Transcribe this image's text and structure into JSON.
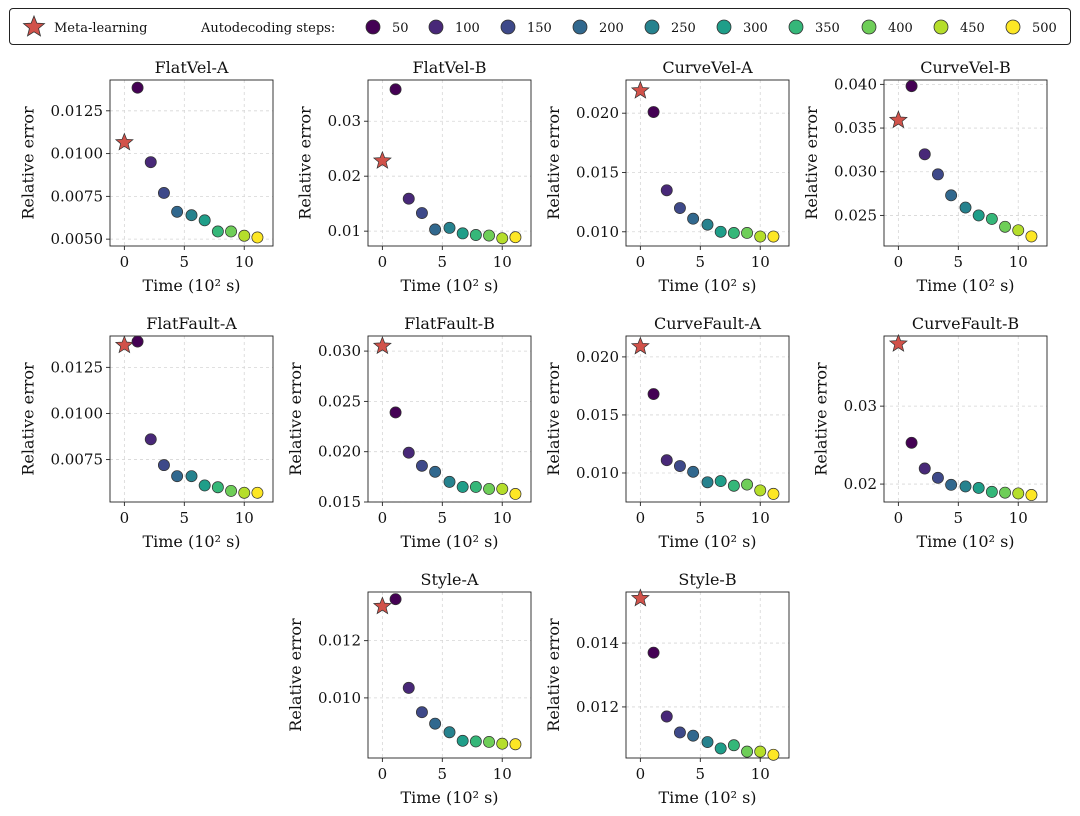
{
  "legend": {
    "meta_label": "Meta-learning",
    "steps_label": "Autodecoding steps:",
    "step_values": [
      "50",
      "100",
      "150",
      "200",
      "250",
      "300",
      "350",
      "400",
      "450",
      "500"
    ],
    "step_colors": [
      "#440154",
      "#482878",
      "#3e4989",
      "#31688e",
      "#26828e",
      "#1f9e89",
      "#35b779",
      "#6ece58",
      "#b5de2b",
      "#fde725"
    ],
    "star_color": "#d1524a"
  },
  "chart_data": [
    {
      "type": "scatter",
      "title": "FlatVel-A",
      "xlabel": "Time (10² s)",
      "ylabel": "Relative error",
      "xlim": [
        -1.2,
        12.4
      ],
      "ylim": [
        0.0046,
        0.0143
      ],
      "yticks": [
        0.005,
        0.0075,
        0.01,
        0.0125
      ],
      "ytick_labels": [
        "0.0050",
        "0.0075",
        "0.0100",
        "0.0125"
      ],
      "xticks": [
        0,
        5,
        10
      ],
      "xtick_labels": [
        "0",
        "5",
        "10"
      ],
      "meta_learning": {
        "x": 0,
        "y": 0.01065
      },
      "autodecoding": {
        "x": [
          1.1,
          2.2,
          3.3,
          4.4,
          5.6,
          6.7,
          7.8,
          8.9,
          10.0,
          11.1
        ],
        "y": [
          0.01385,
          0.0095,
          0.0077,
          0.0066,
          0.0064,
          0.0061,
          0.00545,
          0.00545,
          0.0052,
          0.0051
        ]
      }
    },
    {
      "type": "scatter",
      "title": "FlatVel-B",
      "xlabel": "Time (10² s)",
      "ylabel": "Relative error",
      "xlim": [
        -1.2,
        12.4
      ],
      "ylim": [
        0.0073,
        0.0375
      ],
      "yticks": [
        0.01,
        0.02,
        0.03
      ],
      "ytick_labels": [
        "0.01",
        "0.02",
        "0.03"
      ],
      "xticks": [
        0,
        5,
        10
      ],
      "xtick_labels": [
        "0",
        "5",
        "10"
      ],
      "meta_learning": {
        "x": 0,
        "y": 0.0228
      },
      "autodecoding": {
        "x": [
          1.1,
          2.2,
          3.3,
          4.4,
          5.6,
          6.7,
          7.8,
          8.9,
          10.0,
          11.1
        ],
        "y": [
          0.0358,
          0.0159,
          0.0133,
          0.0103,
          0.0106,
          0.0096,
          0.0093,
          0.0092,
          0.0087,
          0.0089
        ]
      }
    },
    {
      "type": "scatter",
      "title": "CurveVel-A",
      "xlabel": "Time (10² s)",
      "ylabel": "Relative error",
      "xlim": [
        -1.2,
        12.4
      ],
      "ylim": [
        0.0088,
        0.0228
      ],
      "yticks": [
        0.01,
        0.015,
        0.02
      ],
      "ytick_labels": [
        "0.010",
        "0.015",
        "0.020"
      ],
      "xticks": [
        0,
        5,
        10
      ],
      "xtick_labels": [
        "0",
        "5",
        "10"
      ],
      "meta_learning": {
        "x": 0,
        "y": 0.0219
      },
      "autodecoding": {
        "x": [
          1.1,
          2.2,
          3.3,
          4.4,
          5.6,
          6.7,
          7.8,
          8.9,
          10.0,
          11.1
        ],
        "y": [
          0.0201,
          0.0135,
          0.012,
          0.0111,
          0.0106,
          0.01,
          0.0099,
          0.0099,
          0.0096,
          0.0096
        ]
      }
    },
    {
      "type": "scatter",
      "title": "CurveVel-B",
      "xlabel": "Time (10² s)",
      "ylabel": "Relative error",
      "xlim": [
        -1.2,
        12.4
      ],
      "ylim": [
        0.0215,
        0.0405
      ],
      "yticks": [
        0.025,
        0.03,
        0.035,
        0.04
      ],
      "ytick_labels": [
        "0.025",
        "0.030",
        "0.035",
        "0.040"
      ],
      "xticks": [
        0,
        5,
        10
      ],
      "xtick_labels": [
        "0",
        "5",
        "10"
      ],
      "meta_learning": {
        "x": 0,
        "y": 0.0359
      },
      "autodecoding": {
        "x": [
          1.1,
          2.2,
          3.3,
          4.4,
          5.6,
          6.7,
          7.8,
          8.9,
          10.0,
          11.1
        ],
        "y": [
          0.0398,
          0.032,
          0.0297,
          0.0273,
          0.0259,
          0.025,
          0.0246,
          0.0237,
          0.0233,
          0.0226
        ]
      }
    },
    {
      "type": "scatter",
      "title": "FlatFault-A",
      "xlabel": "Time (10² s)",
      "ylabel": "Relative error",
      "xlim": [
        -1.2,
        12.4
      ],
      "ylim": [
        0.0052,
        0.0142
      ],
      "yticks": [
        0.0075,
        0.01,
        0.0125
      ],
      "ytick_labels": [
        "0.0075",
        "0.0100",
        "0.0125"
      ],
      "xticks": [
        0,
        5,
        10
      ],
      "xtick_labels": [
        "0",
        "5",
        "10"
      ],
      "meta_learning": {
        "x": 0,
        "y": 0.0137
      },
      "autodecoding": {
        "x": [
          1.1,
          2.2,
          3.3,
          4.4,
          5.6,
          6.7,
          7.8,
          8.9,
          10.0,
          11.1
        ],
        "y": [
          0.0139,
          0.0086,
          0.0072,
          0.0066,
          0.0066,
          0.0061,
          0.006,
          0.0058,
          0.0057,
          0.0057
        ]
      }
    },
    {
      "type": "scatter",
      "title": "FlatFault-B",
      "xlabel": "Time (10² s)",
      "ylabel": "Relative error",
      "xlim": [
        -1.2,
        12.4
      ],
      "ylim": [
        0.015,
        0.0315
      ],
      "yticks": [
        0.015,
        0.02,
        0.025,
        0.03
      ],
      "ytick_labels": [
        "0.015",
        "0.020",
        "0.025",
        "0.030"
      ],
      "xticks": [
        0,
        5,
        10
      ],
      "xtick_labels": [
        "0",
        "5",
        "10"
      ],
      "meta_learning": {
        "x": 0,
        "y": 0.0305
      },
      "autodecoding": {
        "x": [
          1.1,
          2.2,
          3.3,
          4.4,
          5.6,
          6.7,
          7.8,
          8.9,
          10.0,
          11.1
        ],
        "y": [
          0.0239,
          0.0199,
          0.0186,
          0.018,
          0.017,
          0.0165,
          0.0165,
          0.0163,
          0.0163,
          0.0158
        ]
      }
    },
    {
      "type": "scatter",
      "title": "CurveFault-A",
      "xlabel": "Time (10² s)",
      "ylabel": "Relative error",
      "xlim": [
        -1.2,
        12.4
      ],
      "ylim": [
        0.0075,
        0.0218
      ],
      "yticks": [
        0.01,
        0.015,
        0.02
      ],
      "ytick_labels": [
        "0.010",
        "0.015",
        "0.020"
      ],
      "xticks": [
        0,
        5,
        10
      ],
      "xtick_labels": [
        "0",
        "5",
        "10"
      ],
      "meta_learning": {
        "x": 0,
        "y": 0.0209
      },
      "autodecoding": {
        "x": [
          1.1,
          2.2,
          3.3,
          4.4,
          5.6,
          6.7,
          7.8,
          8.9,
          10.0,
          11.1
        ],
        "y": [
          0.0168,
          0.0111,
          0.0106,
          0.0101,
          0.0092,
          0.0093,
          0.0089,
          0.009,
          0.0085,
          0.0082
        ]
      }
    },
    {
      "type": "scatter",
      "title": "CurveFault-B",
      "xlabel": "Time (10² s)",
      "ylabel": "Relative error",
      "xlim": [
        -1.2,
        12.4
      ],
      "ylim": [
        0.0177,
        0.039
      ],
      "yticks": [
        0.02,
        0.03
      ],
      "ytick_labels": [
        "0.02",
        "0.03"
      ],
      "xticks": [
        0,
        5,
        10
      ],
      "xtick_labels": [
        "0",
        "5",
        "10"
      ],
      "meta_learning": {
        "x": 0,
        "y": 0.038
      },
      "autodecoding": {
        "x": [
          1.1,
          2.2,
          3.3,
          4.4,
          5.6,
          6.7,
          7.8,
          8.9,
          10.0,
          11.1
        ],
        "y": [
          0.0253,
          0.022,
          0.0208,
          0.0199,
          0.0197,
          0.0195,
          0.019,
          0.0189,
          0.0188,
          0.0186
        ]
      }
    },
    {
      "type": "scatter",
      "title": "Style-A",
      "xlabel": "Time (10² s)",
      "ylabel": "Relative error",
      "xlim": [
        -1.2,
        12.4
      ],
      "ylim": [
        0.0079,
        0.0137
      ],
      "yticks": [
        0.01,
        0.012
      ],
      "ytick_labels": [
        "0.010",
        "0.012"
      ],
      "xticks": [
        0,
        5,
        10
      ],
      "xtick_labels": [
        "0",
        "5",
        "10"
      ],
      "meta_learning": {
        "x": 0,
        "y": 0.0132
      },
      "autodecoding": {
        "x": [
          1.1,
          2.2,
          3.3,
          4.4,
          5.6,
          6.7,
          7.8,
          8.9,
          10.0,
          11.1
        ],
        "y": [
          0.01345,
          0.01035,
          0.0095,
          0.0091,
          0.0088,
          0.0085,
          0.00848,
          0.00846,
          0.0084,
          0.00838
        ]
      }
    },
    {
      "type": "scatter",
      "title": "Style-B",
      "xlabel": "Time (10² s)",
      "ylabel": "Relative error",
      "xlim": [
        -1.2,
        12.4
      ],
      "ylim": [
        0.0104,
        0.0156
      ],
      "yticks": [
        0.012,
        0.014
      ],
      "ytick_labels": [
        "0.012",
        "0.014"
      ],
      "xticks": [
        0,
        5,
        10
      ],
      "xtick_labels": [
        "0",
        "5",
        "10"
      ],
      "meta_learning": {
        "x": 0,
        "y": 0.0154
      },
      "autodecoding": {
        "x": [
          1.1,
          2.2,
          3.3,
          4.4,
          5.6,
          6.7,
          7.8,
          8.9,
          10.0,
          11.1
        ],
        "y": [
          0.0137,
          0.0117,
          0.0112,
          0.0111,
          0.0109,
          0.0107,
          0.0108,
          0.0106,
          0.0106,
          0.0105
        ]
      }
    }
  ]
}
